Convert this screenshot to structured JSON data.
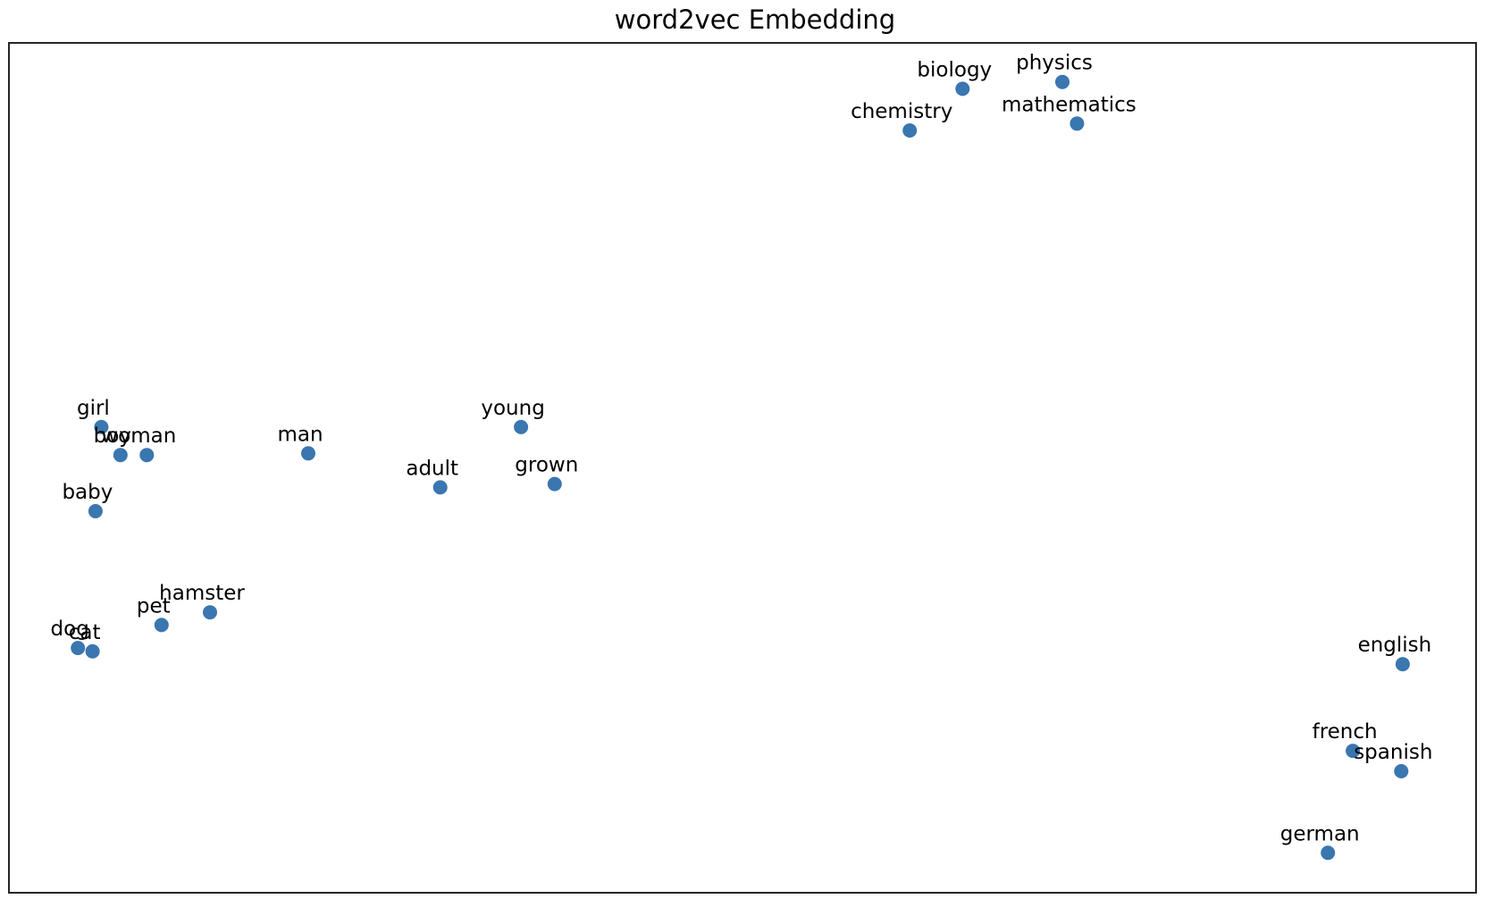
{
  "chart_data": {
    "type": "scatter",
    "title": "word2vec Embedding",
    "xlabel": "",
    "ylabel": "",
    "xlim": [
      0,
      1000
    ],
    "ylim": [
      0,
      1000
    ],
    "grid": false,
    "axes_ticks": false,
    "legend": "none",
    "colors": {
      "marker": "#3a76af",
      "axes_frame": "#262626",
      "text": "#000000",
      "background": "#ffffff"
    },
    "points": [
      {
        "label": "biology",
        "x": 650,
        "y": 946
      },
      {
        "label": "physics",
        "x": 718,
        "y": 954
      },
      {
        "label": "chemistry",
        "x": 614,
        "y": 897
      },
      {
        "label": "mathematics",
        "x": 728,
        "y": 905
      },
      {
        "label": "girl",
        "x": 63,
        "y": 548
      },
      {
        "label": "boy",
        "x": 76,
        "y": 515
      },
      {
        "label": "woman",
        "x": 94,
        "y": 515
      },
      {
        "label": "man",
        "x": 204,
        "y": 517
      },
      {
        "label": "young",
        "x": 349,
        "y": 548
      },
      {
        "label": "adult",
        "x": 294,
        "y": 477
      },
      {
        "label": "grown",
        "x": 372,
        "y": 481
      },
      {
        "label": "baby",
        "x": 59,
        "y": 449
      },
      {
        "label": "pet",
        "x": 104,
        "y": 315
      },
      {
        "label": "hamster",
        "x": 137,
        "y": 330
      },
      {
        "label": "dog",
        "x": 47,
        "y": 288
      },
      {
        "label": "cat",
        "x": 57,
        "y": 284
      },
      {
        "label": "english",
        "x": 950,
        "y": 269
      },
      {
        "label": "french",
        "x": 916,
        "y": 167
      },
      {
        "label": "spanish",
        "x": 949,
        "y": 143
      },
      {
        "label": "german",
        "x": 899,
        "y": 47
      }
    ]
  }
}
